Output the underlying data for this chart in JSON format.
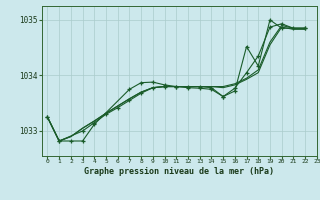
{
  "title": "Graphe pression niveau de la mer (hPa)",
  "background_color": "#cce8ec",
  "grid_color": "#aacccc",
  "line_color": "#1a5c2a",
  "spine_color": "#336633",
  "xlim": [
    -0.5,
    23
  ],
  "ylim": [
    1032.55,
    1035.25
  ],
  "yticks": [
    1033,
    1034,
    1035
  ],
  "xticks": [
    0,
    1,
    2,
    3,
    4,
    5,
    6,
    7,
    8,
    9,
    10,
    11,
    12,
    13,
    14,
    15,
    16,
    17,
    18,
    19,
    20,
    21,
    22,
    23
  ],
  "line1": {
    "x": [
      0,
      1,
      2,
      3,
      4,
      5,
      6,
      7,
      8,
      9,
      10,
      11,
      12,
      13,
      14,
      15,
      16,
      17,
      18,
      19,
      20,
      21,
      22
    ],
    "y": [
      1033.25,
      1032.82,
      1032.9,
      1033.05,
      1033.18,
      1033.32,
      1033.45,
      1033.58,
      1033.7,
      1033.78,
      1033.8,
      1033.8,
      1033.8,
      1033.8,
      1033.8,
      1033.8,
      1033.85,
      1033.95,
      1034.1,
      1034.6,
      1034.9,
      1034.85,
      1034.85
    ],
    "marker": false
  },
  "line2": {
    "x": [
      0,
      1,
      2,
      3,
      4,
      5,
      6,
      7,
      8,
      9,
      10,
      11,
      12,
      13,
      14,
      15,
      16,
      17,
      18,
      19,
      20,
      21,
      22
    ],
    "y": [
      1033.25,
      1032.82,
      1032.9,
      1033.05,
      1033.18,
      1033.32,
      1033.45,
      1033.58,
      1033.7,
      1033.78,
      1033.8,
      1033.8,
      1033.8,
      1033.8,
      1033.8,
      1033.78,
      1033.83,
      1033.93,
      1034.05,
      1034.55,
      1034.87,
      1034.83,
      1034.83
    ],
    "marker": false
  },
  "line3": {
    "x": [
      0,
      1,
      2,
      3,
      4,
      7,
      8,
      9,
      10,
      11,
      12,
      13,
      14,
      15,
      16,
      17,
      18,
      19,
      20,
      22
    ],
    "y": [
      1033.25,
      1032.82,
      1032.82,
      1032.82,
      1033.12,
      1033.75,
      1033.87,
      1033.88,
      1033.83,
      1033.8,
      1033.78,
      1033.77,
      1033.75,
      1033.62,
      1033.72,
      1034.52,
      1034.17,
      1035.0,
      1034.85,
      1034.85
    ],
    "marker": true
  },
  "line4": {
    "x": [
      0,
      1,
      3,
      4,
      5,
      6,
      7,
      8,
      9,
      10,
      11,
      12,
      13,
      14,
      15,
      16,
      17,
      18,
      19,
      20,
      21,
      22
    ],
    "y": [
      1033.25,
      1032.82,
      1033.0,
      1033.15,
      1033.3,
      1033.42,
      1033.55,
      1033.68,
      1033.78,
      1033.8,
      1033.8,
      1033.8,
      1033.8,
      1033.78,
      1033.62,
      1033.77,
      1034.05,
      1034.35,
      1034.87,
      1034.93,
      1034.85,
      1034.85
    ],
    "marker": true
  }
}
